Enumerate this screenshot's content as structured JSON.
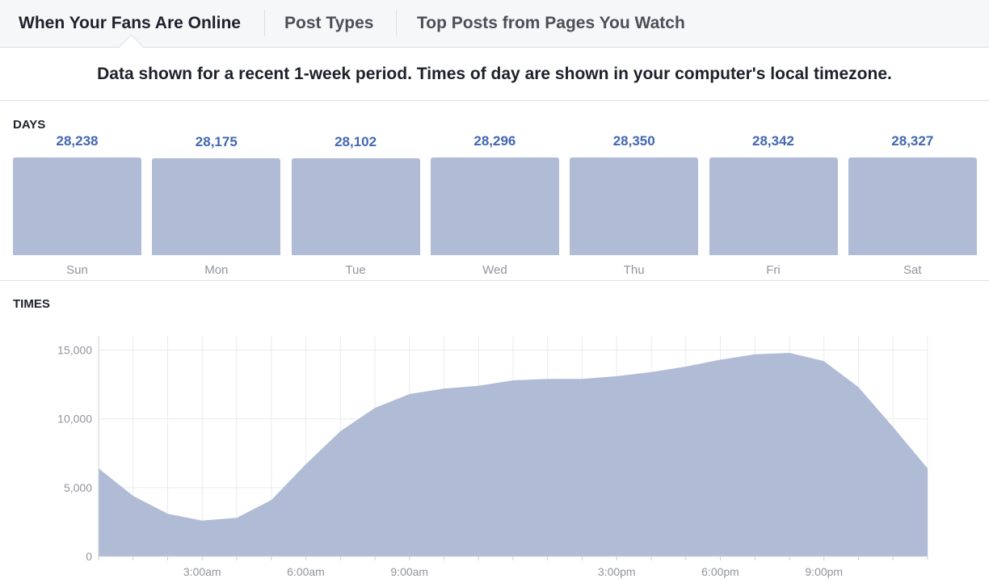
{
  "tabs": [
    {
      "label": "When Your Fans Are Online"
    },
    {
      "label": "Post Types"
    },
    {
      "label": "Top Posts from Pages You Watch"
    }
  ],
  "notice": "Data shown for a recent 1-week period. Times of day are shown in your computer's local timezone.",
  "days_section": {
    "label": "DAYS"
  },
  "times_section": {
    "label": "TIMES"
  },
  "colors": {
    "accent": "#4267b2",
    "bar_fill": "#b0bcd6",
    "area_fill": "#b0bcd6"
  },
  "chart_data": [
    {
      "type": "bar",
      "title": "DAYS",
      "categories": [
        "Sun",
        "Mon",
        "Tue",
        "Wed",
        "Thu",
        "Fri",
        "Sat"
      ],
      "values": [
        28238,
        28175,
        28102,
        28296,
        28350,
        28342,
        28327
      ],
      "value_labels": [
        "28,238",
        "28,175",
        "28,102",
        "28,296",
        "28,350",
        "28,342",
        "28,327"
      ]
    },
    {
      "type": "area",
      "title": "TIMES",
      "x_tick_labels": [
        "3:00am",
        "6:00am",
        "9:00am",
        "3:00pm",
        "6:00pm",
        "9:00pm"
      ],
      "x_tick_hours": [
        3,
        6,
        9,
        15,
        18,
        21
      ],
      "x_hours": [
        0,
        1,
        2,
        3,
        4,
        5,
        6,
        7,
        8,
        9,
        10,
        11,
        12,
        13,
        14,
        15,
        16,
        17,
        18,
        19,
        20,
        21,
        22,
        23,
        24
      ],
      "values": [
        6400,
        4400,
        3100,
        2600,
        2800,
        4100,
        6700,
        9100,
        10800,
        11800,
        12200,
        12400,
        12800,
        12900,
        12900,
        13100,
        13400,
        13800,
        14300,
        14700,
        14800,
        14200,
        12300,
        9400,
        6400
      ],
      "y_ticks": [
        0,
        5000,
        10000,
        15000
      ],
      "y_tick_labels": [
        "0",
        "5,000",
        "10,000",
        "15,000"
      ],
      "ylim": [
        0,
        16500
      ],
      "grid": true
    }
  ]
}
